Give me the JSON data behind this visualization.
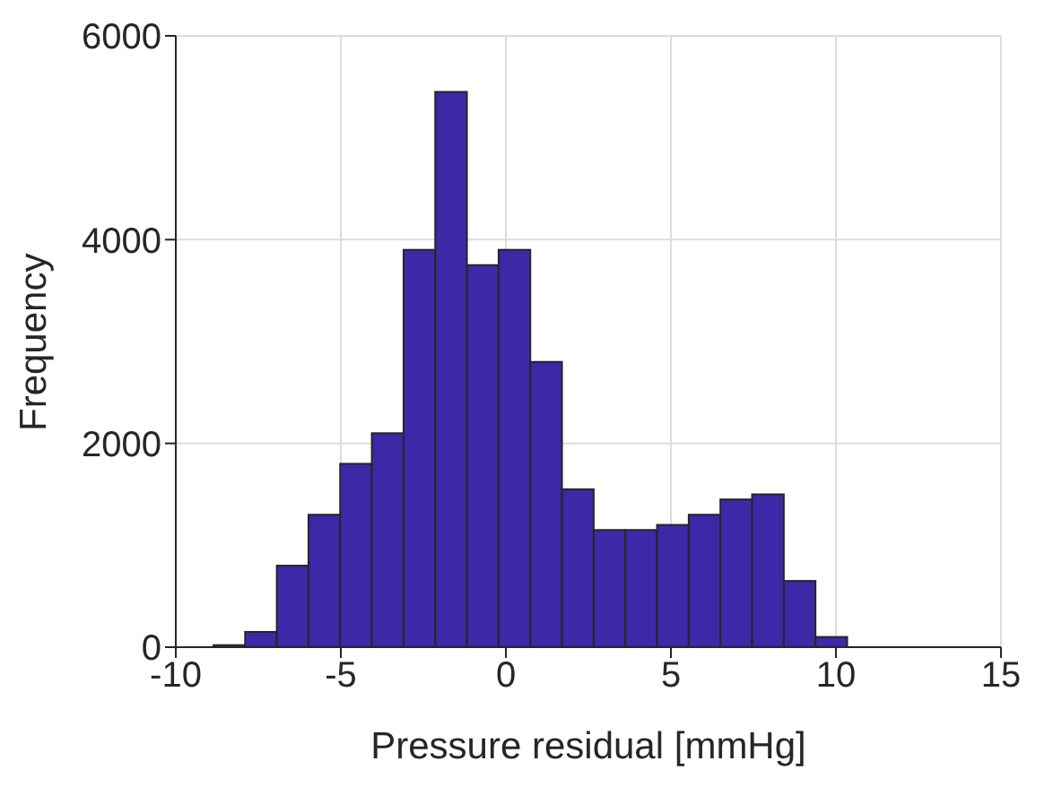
{
  "chart_data": {
    "type": "histogram",
    "xlabel": "Pressure residual [mmHg]",
    "ylabel": "Frequency",
    "bins": [
      -8.86,
      -7.9,
      -6.94,
      -5.98,
      -5.02,
      -4.06,
      -3.1,
      -2.14,
      -1.18,
      -0.22,
      0.74,
      1.7,
      2.66,
      3.62,
      4.58,
      5.54,
      6.5,
      7.46,
      8.42,
      9.38,
      10.34
    ],
    "values": [
      20,
      150,
      800,
      1300,
      1800,
      2100,
      3900,
      5450,
      3750,
      3900,
      2800,
      1550,
      1150,
      1150,
      1200,
      1300,
      1450,
      1500,
      650,
      100
    ],
    "color": "#3d28a8",
    "xlim": [
      -10,
      15
    ],
    "xticks": [
      -10,
      -5,
      0,
      5,
      10,
      15
    ],
    "ylim": [
      0,
      6000
    ],
    "yticks": [
      0,
      2000,
      4000,
      6000
    ],
    "grid": true
  }
}
